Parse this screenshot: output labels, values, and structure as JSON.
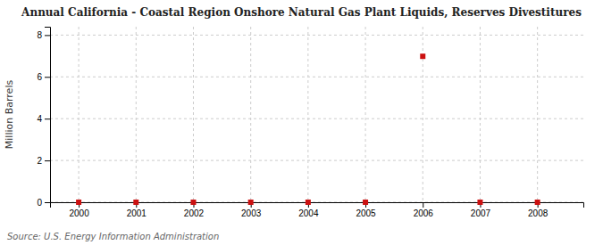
{
  "chart_data": {
    "type": "scatter",
    "title": "Annual California - Coastal Region Onshore Natural Gas Plant Liquids, Reserves Divestitures",
    "ylabel": "Million Barrels",
    "source": "Source: U.S. Energy Information Administration",
    "x": [
      2000,
      2001,
      2002,
      2003,
      2004,
      2005,
      2006,
      2007,
      2008
    ],
    "values": [
      0.0,
      0.0,
      0.0,
      0.0,
      0.0,
      0.0,
      6.984,
      0.0,
      0.0
    ],
    "color": "#cc1111",
    "marker": "square",
    "xlim": [
      1999.5,
      2008.8
    ],
    "ylim": [
      0,
      8.4
    ],
    "xticks": [
      2000,
      2001,
      2002,
      2003,
      2004,
      2005,
      2006,
      2007,
      2008
    ],
    "yticks": [
      0,
      2,
      4,
      6,
      8
    ],
    "grid": true
  }
}
